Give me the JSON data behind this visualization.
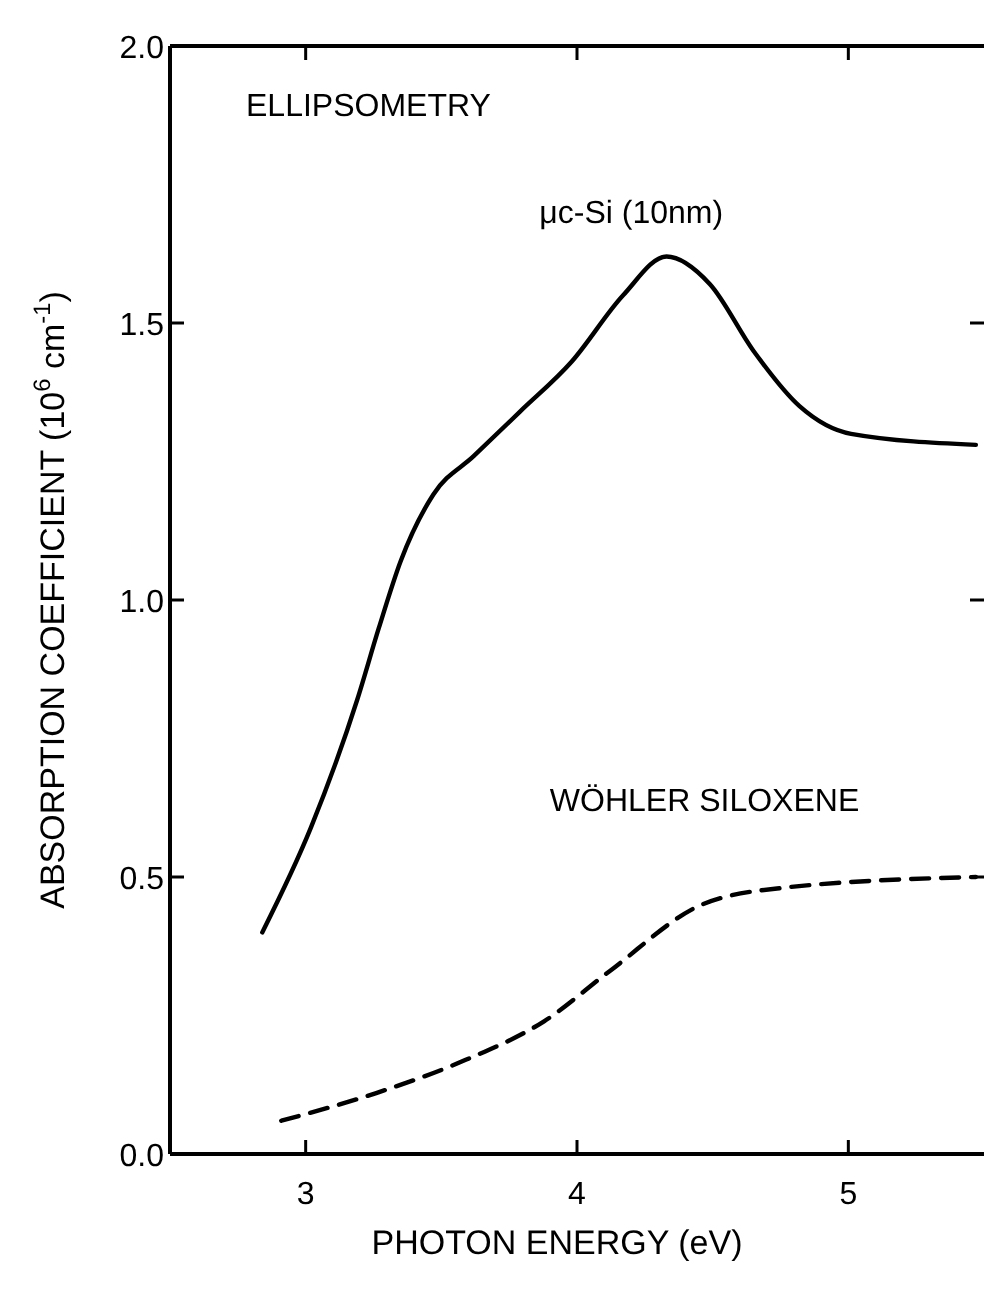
{
  "chart_data": {
    "type": "line",
    "xlabel": "PHOTON ENERGY (eV)",
    "ylabel": "ABSORPTION COEFFICIENT (10$^{6}$ cm$^{-1}$)",
    "annotations": [
      "ELLIPSOMETRY"
    ],
    "xlim": [
      2.5,
      5.5
    ],
    "ylim": [
      0,
      2
    ],
    "xticks": [
      3,
      4,
      5
    ],
    "yticks": [
      {
        "value": 0,
        "label": "0.0"
      },
      0.5,
      {
        "value": 1,
        "label": "1.0"
      },
      1.5,
      {
        "value": 2,
        "label": "2.0"
      }
    ],
    "grid": false,
    "legend": false,
    "series": [
      {
        "name": "μc-Si (10nm)",
        "color": "#000000",
        "line_style": "solid",
        "x": [
          2.84,
          3.02,
          3.19,
          3.27,
          3.35,
          3.47,
          3.62,
          3.79,
          3.98,
          4.17,
          4.33,
          4.49,
          4.65,
          4.82,
          5.01,
          5.47
        ],
        "values": [
          0.4,
          0.59,
          0.82,
          0.95,
          1.07,
          1.19,
          1.26,
          1.34,
          1.43,
          1.55,
          1.62,
          1.57,
          1.45,
          1.35,
          1.3,
          1.28
        ]
      },
      {
        "name": "WÖHLER SILOXENE",
        "color": "#000000",
        "line_style": "dashed",
        "x": [
          2.91,
          3.26,
          3.59,
          3.88,
          4.12,
          4.46,
          4.75,
          5.47
        ],
        "values": [
          0.06,
          0.11,
          0.17,
          0.24,
          0.33,
          0.45,
          0.48,
          0.5
        ]
      }
    ]
  }
}
